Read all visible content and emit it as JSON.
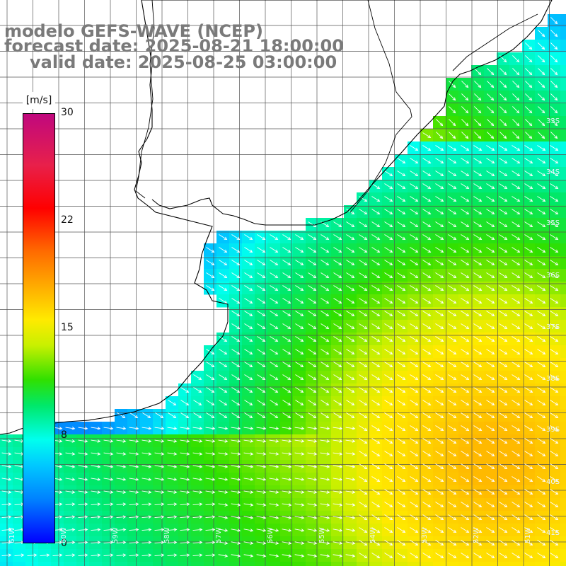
{
  "header": {
    "title": "modelo GEFS-WAVE (NCEP)",
    "forecast_date": "forecast date: 2025-08-21 18:00:00",
    "valid_date": "valid date: 2025-08-25 03:00:00"
  },
  "colorbar": {
    "unit": "[m/s]",
    "ticks": [
      "30",
      "22",
      "15",
      "8",
      "0"
    ]
  },
  "latitude_labels": [
    "33S",
    "34S",
    "35S",
    "36S",
    "37S",
    "38S",
    "39S",
    "40S",
    "41S"
  ],
  "longitude_labels": [
    "61W",
    "60W",
    "59W",
    "58W",
    "57W",
    "56W",
    "55W",
    "54W",
    "53W",
    "52W",
    "51W"
  ],
  "colors": {
    "header_text": "#7a7a7a",
    "grid": "#555555",
    "coast": "#000000",
    "arrows": "#ffffff",
    "land": "#ffffff"
  }
}
